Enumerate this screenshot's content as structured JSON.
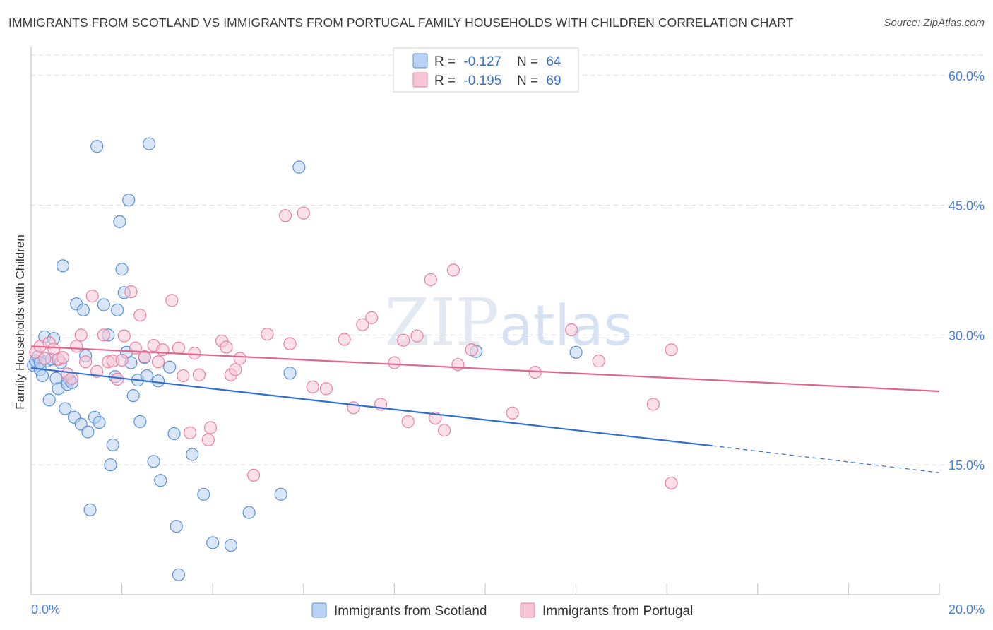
{
  "title": "IMMIGRANTS FROM SCOTLAND VS IMMIGRANTS FROM PORTUGAL FAMILY HOUSEHOLDS WITH CHILDREN CORRELATION CHART",
  "source": "Source: ZipAtlas.com",
  "watermark": "ZIPatlas",
  "colors": {
    "scotland": "#5b8fd6",
    "scotland_fill": "#b9d2f3",
    "scotland_line": "#2f6fcf",
    "portugal": "#e87fa2",
    "portugal_fill": "#f7c6d6",
    "portugal_line": "#e06690",
    "tick": "#4a7fd4"
  },
  "legend": {
    "scotland": {
      "r_label": "R = ",
      "r_value": "-0.127",
      "n_label": "N = ",
      "n_value": "64"
    },
    "portugal": {
      "r_label": "R = ",
      "r_value": "-0.195",
      "n_label": "N = ",
      "n_value": "69"
    }
  },
  "chart_data": {
    "type": "scatter",
    "title": "IMMIGRANTS FROM SCOTLAND VS IMMIGRANTS FROM PORTUGAL FAMILY HOUSEHOLDS WITH CHILDREN CORRELATION CHART",
    "xlabel": "",
    "ylabel": "Family Households with Children",
    "xlim": [
      0,
      20
    ],
    "ylim": [
      0,
      63
    ],
    "x_tick_labels": [
      "0.0%",
      "20.0%"
    ],
    "y_ticks": [
      15,
      30,
      45,
      60
    ],
    "y_tick_labels": [
      "15.0%",
      "30.0%",
      "45.0%",
      "60.0%"
    ],
    "grid": true,
    "legend_position": "top-center",
    "series": [
      {
        "name": "Immigrants from Scotland",
        "trend": {
          "x_start": 0.0,
          "y_start": 26.2,
          "x_solid_end": 15.0,
          "y_solid_end": 17.2,
          "x_end": 20.0,
          "y_end": 14.1
        },
        "points": [
          [
            0.05,
            26.5
          ],
          [
            0.1,
            27.0
          ],
          [
            0.15,
            27.5
          ],
          [
            0.2,
            26.0
          ],
          [
            0.25,
            25.3
          ],
          [
            0.3,
            29.8
          ],
          [
            0.35,
            27.0
          ],
          [
            0.4,
            22.5
          ],
          [
            0.45,
            27.2
          ],
          [
            0.5,
            29.6
          ],
          [
            0.55,
            25.0
          ],
          [
            0.6,
            23.8
          ],
          [
            0.65,
            26.8
          ],
          [
            0.7,
            38.0
          ],
          [
            0.75,
            21.5
          ],
          [
            0.8,
            24.3
          ],
          [
            0.85,
            24.8
          ],
          [
            0.9,
            24.5
          ],
          [
            0.95,
            20.5
          ],
          [
            1.0,
            33.6
          ],
          [
            1.1,
            19.7
          ],
          [
            1.15,
            32.9
          ],
          [
            1.2,
            27.6
          ],
          [
            1.25,
            18.8
          ],
          [
            1.3,
            9.8
          ],
          [
            1.4,
            20.5
          ],
          [
            1.45,
            51.8
          ],
          [
            1.5,
            19.9
          ],
          [
            1.6,
            33.5
          ],
          [
            1.7,
            30.0
          ],
          [
            1.75,
            15.0
          ],
          [
            1.8,
            17.3
          ],
          [
            1.85,
            25.2
          ],
          [
            1.9,
            32.9
          ],
          [
            1.95,
            43.1
          ],
          [
            2.0,
            37.6
          ],
          [
            2.05,
            34.9
          ],
          [
            2.1,
            28.0
          ],
          [
            2.15,
            45.6
          ],
          [
            2.2,
            26.8
          ],
          [
            2.25,
            23.0
          ],
          [
            2.35,
            24.8
          ],
          [
            2.4,
            20.0
          ],
          [
            2.5,
            27.4
          ],
          [
            2.55,
            25.3
          ],
          [
            2.6,
            52.1
          ],
          [
            2.7,
            15.4
          ],
          [
            2.8,
            24.7
          ],
          [
            2.85,
            13.2
          ],
          [
            3.05,
            26.3
          ],
          [
            3.15,
            18.6
          ],
          [
            3.2,
            7.9
          ],
          [
            3.25,
            2.3
          ],
          [
            3.55,
            16.2
          ],
          [
            3.8,
            11.6
          ],
          [
            4.0,
            6.0
          ],
          [
            4.4,
            5.7
          ],
          [
            4.8,
            9.5
          ],
          [
            5.5,
            11.6
          ],
          [
            5.7,
            25.6
          ],
          [
            5.9,
            49.4
          ],
          [
            9.8,
            28.1
          ],
          [
            12.0,
            28.0
          ],
          [
            0.2,
            26.8
          ]
        ]
      },
      {
        "name": "Immigrants from Portugal",
        "trend": {
          "x_start": 0.0,
          "y_start": 28.7,
          "x_end": 20.0,
          "y_end": 23.5
        },
        "points": [
          [
            0.1,
            28.0
          ],
          [
            0.2,
            28.7
          ],
          [
            0.3,
            27.3
          ],
          [
            0.4,
            29.1
          ],
          [
            0.5,
            28.4
          ],
          [
            0.6,
            27.2
          ],
          [
            0.7,
            27.4
          ],
          [
            0.8,
            25.5
          ],
          [
            0.9,
            25.0
          ],
          [
            1.0,
            28.7
          ],
          [
            1.1,
            30.0
          ],
          [
            1.2,
            26.9
          ],
          [
            1.35,
            34.5
          ],
          [
            1.45,
            25.8
          ],
          [
            1.6,
            30.0
          ],
          [
            1.7,
            26.9
          ],
          [
            1.8,
            27.0
          ],
          [
            1.9,
            24.9
          ],
          [
            2.0,
            27.1
          ],
          [
            2.05,
            29.9
          ],
          [
            2.2,
            35.0
          ],
          [
            2.3,
            28.5
          ],
          [
            2.4,
            32.3
          ],
          [
            2.5,
            27.5
          ],
          [
            2.7,
            28.8
          ],
          [
            2.8,
            26.9
          ],
          [
            2.9,
            28.3
          ],
          [
            3.1,
            34.0
          ],
          [
            3.25,
            28.5
          ],
          [
            3.35,
            25.3
          ],
          [
            3.5,
            18.7
          ],
          [
            3.6,
            27.9
          ],
          [
            3.7,
            25.4
          ],
          [
            3.9,
            17.9
          ],
          [
            3.95,
            19.3
          ],
          [
            4.2,
            29.3
          ],
          [
            4.3,
            28.6
          ],
          [
            4.4,
            25.4
          ],
          [
            4.5,
            26.0
          ],
          [
            4.6,
            27.3
          ],
          [
            4.9,
            13.8
          ],
          [
            5.2,
            30.1
          ],
          [
            5.6,
            43.8
          ],
          [
            5.7,
            29.0
          ],
          [
            6.0,
            44.1
          ],
          [
            6.2,
            24.0
          ],
          [
            6.5,
            23.8
          ],
          [
            6.9,
            29.5
          ],
          [
            7.1,
            21.6
          ],
          [
            7.3,
            31.2
          ],
          [
            7.5,
            32.0
          ],
          [
            7.7,
            22.0
          ],
          [
            8.0,
            26.8
          ],
          [
            8.2,
            29.4
          ],
          [
            8.3,
            20.0
          ],
          [
            8.5,
            29.9
          ],
          [
            8.8,
            36.4
          ],
          [
            8.9,
            20.4
          ],
          [
            9.1,
            19.0
          ],
          [
            9.3,
            37.5
          ],
          [
            9.4,
            26.6
          ],
          [
            9.7,
            28.3
          ],
          [
            10.6,
            21.0
          ],
          [
            11.1,
            25.7
          ],
          [
            11.9,
            30.6
          ],
          [
            12.5,
            27.0
          ],
          [
            13.7,
            22.0
          ],
          [
            14.1,
            28.3
          ],
          [
            14.1,
            12.9
          ]
        ]
      }
    ]
  },
  "bottom_legend": [
    "Immigrants from Scotland",
    "Immigrants from Portugal"
  ]
}
